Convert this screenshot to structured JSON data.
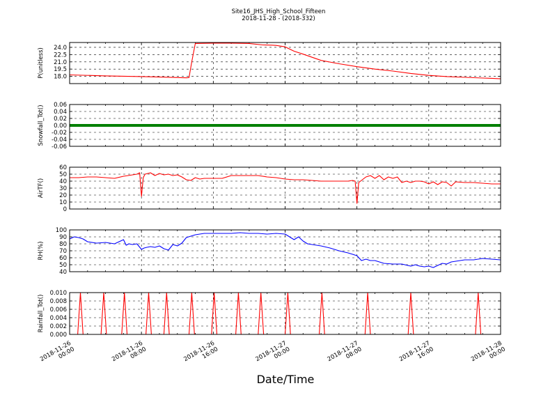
{
  "figure": {
    "title_line1": "Site16_JHS_High_School_Fifteen",
    "title_line2": "2018-11-28 - (2018-332)",
    "xlabel": "Date/Time",
    "x_tick_labels": [
      [
        "2018-11-26",
        "00:00"
      ],
      [
        "2018-11-26",
        "08:00"
      ],
      [
        "2018-11-26",
        "16:00"
      ],
      [
        "2018-11-27",
        "00:00"
      ],
      [
        "2018-11-27",
        "08:00"
      ],
      [
        "2018-11-27",
        "16:00"
      ],
      [
        "2018-11-28",
        "00:00"
      ]
    ]
  },
  "chart_data": [
    {
      "type": "line",
      "ylabel": "P(unitless)",
      "color": "#ff0000",
      "x_unit": "hours since 2018-11-26 00:00",
      "xlim": [
        0,
        48
      ],
      "ylim": [
        16.5,
        25.0
      ],
      "yticks": [
        "18.0",
        "19.5",
        "21.0",
        "22.5",
        "24.0"
      ],
      "ytick_values": [
        18.0,
        19.5,
        21.0,
        22.5,
        24.0
      ],
      "grid": true,
      "x": [
        0,
        4,
        8,
        10,
        12,
        13,
        13.3,
        13.6,
        14,
        16,
        18,
        20,
        21.5,
        22.5,
        23,
        24,
        25,
        26,
        28,
        30,
        32,
        34,
        36,
        38,
        40,
        42,
        44,
        46,
        47,
        48
      ],
      "y": [
        18.3,
        18.1,
        17.95,
        17.85,
        17.75,
        17.7,
        17.75,
        21.0,
        24.8,
        24.85,
        24.85,
        24.8,
        24.5,
        24.45,
        24.4,
        24.1,
        23.2,
        22.6,
        21.3,
        20.6,
        20.0,
        19.5,
        19.1,
        18.6,
        18.2,
        17.95,
        17.8,
        17.65,
        17.6,
        17.5
      ]
    },
    {
      "type": "line",
      "ylabel": "Snowfall_Tot()",
      "color": "#008000",
      "xlim": [
        0,
        48
      ],
      "ylim": [
        -0.06,
        0.06
      ],
      "yticks": [
        "-0.06",
        "-0.04",
        "-0.02",
        "0.00",
        "0.02",
        "0.04",
        "0.06"
      ],
      "ytick_values": [
        -0.06,
        -0.04,
        -0.02,
        0.0,
        0.02,
        0.04,
        0.06
      ],
      "grid": true,
      "marker": "dot",
      "x": [
        0,
        48
      ],
      "y": [
        0,
        0
      ]
    },
    {
      "type": "line",
      "ylabel": "AirTF()",
      "color": "#ff0000",
      "xlim": [
        0,
        48
      ],
      "ylim": [
        0,
        60
      ],
      "yticks": [
        "0",
        "10",
        "20",
        "30",
        "40",
        "50",
        "60"
      ],
      "ytick_values": [
        0,
        10,
        20,
        30,
        40,
        50,
        60
      ],
      "grid": true,
      "x": [
        0,
        1,
        2,
        3,
        4,
        5,
        6,
        7,
        7.5,
        7.8,
        8.0,
        8.2,
        8.4,
        9,
        9.5,
        10,
        10.5,
        11,
        11.5,
        12,
        12.5,
        13,
        13.5,
        14,
        14.5,
        15,
        16,
        17,
        18,
        19,
        20,
        21,
        22,
        23,
        24,
        25,
        26,
        27,
        28,
        29,
        30,
        31,
        31.5,
        31.8,
        32.0,
        32.2,
        32.4,
        33,
        33.5,
        34,
        34.5,
        35,
        35.5,
        36,
        36.5,
        37,
        37.5,
        38,
        38.5,
        39,
        39.5,
        40,
        40.5,
        41,
        41.5,
        42,
        42.5,
        43,
        44,
        45,
        46,
        47,
        48
      ],
      "y": [
        45,
        45,
        46,
        46,
        45,
        44,
        47,
        49,
        50,
        52,
        18,
        45,
        50,
        52,
        48,
        51,
        49,
        50,
        48,
        49,
        46,
        42,
        41,
        45,
        43,
        44,
        44,
        44,
        48,
        48,
        48,
        48,
        46,
        45,
        43,
        42,
        42,
        41,
        40,
        40,
        40,
        40,
        41,
        40,
        8,
        38,
        40,
        46,
        48,
        44,
        48,
        42,
        46,
        44,
        46,
        38,
        40,
        38,
        40,
        40,
        39,
        36,
        39,
        35,
        39,
        38,
        33,
        39,
        38,
        38,
        37,
        36,
        36
      ]
    },
    {
      "type": "line",
      "ylabel": "RH(%)",
      "color": "#0000ff",
      "xlim": [
        0,
        48
      ],
      "ylim": [
        40,
        100
      ],
      "yticks": [
        "40",
        "50",
        "60",
        "70",
        "80",
        "90",
        "100"
      ],
      "ytick_values": [
        40,
        50,
        60,
        70,
        80,
        90,
        100
      ],
      "grid": true,
      "x": [
        0,
        0.5,
        1,
        1.5,
        2,
        3,
        4,
        5,
        5.5,
        6,
        6.3,
        6.6,
        7,
        7.5,
        8,
        8.3,
        8.6,
        9,
        9.5,
        10,
        10.5,
        11,
        11.5,
        12,
        12.5,
        13,
        13.5,
        14,
        15,
        16,
        17,
        18,
        19,
        20,
        21,
        22,
        23,
        24,
        24.5,
        25,
        25.5,
        26,
        26.5,
        27,
        28,
        29,
        30,
        31,
        32,
        32.5,
        33,
        33.5,
        34,
        35,
        36,
        37,
        38,
        38.5,
        39,
        39.5,
        40,
        40.5,
        41,
        41.5,
        42,
        42.5,
        43,
        44,
        45,
        46,
        47,
        48
      ],
      "y": [
        87,
        90,
        89,
        87,
        83,
        81,
        82,
        80,
        83,
        86,
        78,
        80,
        79,
        80,
        72,
        74,
        75,
        76,
        75,
        77,
        73,
        71,
        79,
        77,
        81,
        89,
        91,
        93,
        95,
        95,
        95,
        95,
        96,
        95,
        95,
        94,
        95,
        94,
        90,
        86,
        90,
        84,
        80,
        79,
        77,
        74,
        70,
        67,
        63,
        56,
        58,
        56,
        56,
        52,
        51,
        51,
        48,
        50,
        48,
        47,
        48,
        46,
        49,
        52,
        51,
        54,
        55,
        57,
        57,
        59,
        58,
        57
      ]
    },
    {
      "type": "line",
      "ylabel": "Rainfall_Tot()",
      "color": "#ff0000",
      "xlim": [
        0,
        48
      ],
      "ylim": [
        0,
        0.01
      ],
      "yticks": [
        "0.000",
        "0.002",
        "0.004",
        "0.006",
        "0.008",
        "0.010"
      ],
      "ytick_values": [
        0,
        0.002,
        0.004,
        0.006,
        0.008,
        0.01
      ],
      "grid": true,
      "x": [
        0,
        0.9,
        1.2,
        1.5,
        3.5,
        3.8,
        4.1,
        5.8,
        6.1,
        6.4,
        8.5,
        8.8,
        9.1,
        10.5,
        10.8,
        11.1,
        13.3,
        13.6,
        13.9,
        15.8,
        16.1,
        16.4,
        18.5,
        18.8,
        19.1,
        21.0,
        21.3,
        21.6,
        24.0,
        24.3,
        24.6,
        27.8,
        28.1,
        28.4,
        32.9,
        33.2,
        33.5,
        37.7,
        38.0,
        38.3,
        45.2,
        45.5,
        45.8,
        48
      ],
      "y": [
        0,
        0,
        0.01,
        0,
        0,
        0.01,
        0,
        0,
        0.01,
        0,
        0,
        0.01,
        0,
        0,
        0.01,
        0,
        0,
        0.01,
        0,
        0,
        0.01,
        0,
        0,
        0.01,
        0,
        0,
        0.01,
        0,
        0,
        0.01,
        0,
        0,
        0.01,
        0,
        0,
        0.01,
        0,
        0,
        0.01,
        0,
        0,
        0.01,
        0,
        0
      ]
    }
  ]
}
